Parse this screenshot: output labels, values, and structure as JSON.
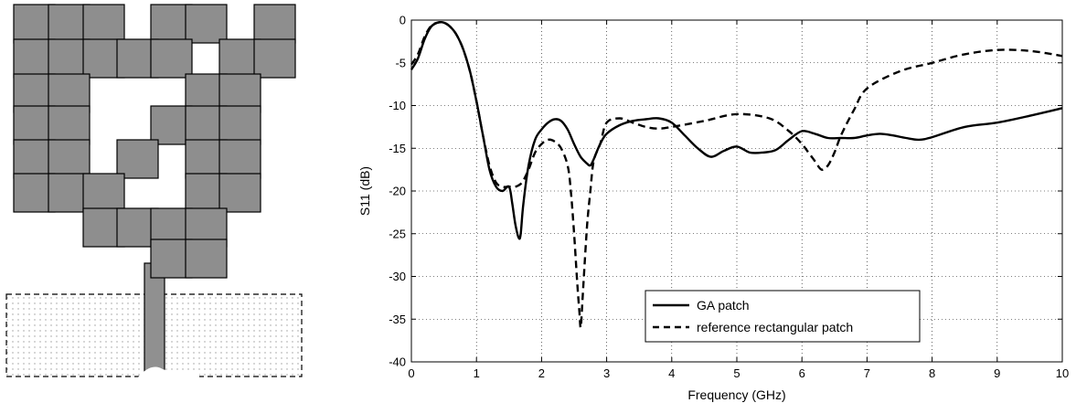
{
  "chart_data": {
    "type": "line",
    "title": "",
    "xlabel": "Frequency (GHz)",
    "ylabel": "S11 (dB)",
    "xlim": [
      0,
      10
    ],
    "ylim": [
      -40,
      0
    ],
    "xticks": [
      0,
      1,
      2,
      3,
      4,
      5,
      6,
      7,
      8,
      9,
      10
    ],
    "yticks": [
      0,
      -5,
      -10,
      -15,
      -20,
      -25,
      -30,
      -35,
      -40
    ],
    "grid": true,
    "legend_position": "bottom-right",
    "series": [
      {
        "name": "GA patch",
        "line_style": "solid",
        "color": "#000000",
        "x": [
          0,
          0.1,
          0.2,
          0.3,
          0.4,
          0.5,
          0.6,
          0.7,
          0.8,
          0.9,
          1.0,
          1.1,
          1.2,
          1.3,
          1.4,
          1.5,
          1.55,
          1.6,
          1.65,
          1.68,
          1.72,
          1.8,
          1.9,
          2.0,
          2.1,
          2.2,
          2.3,
          2.4,
          2.5,
          2.6,
          2.7,
          2.75,
          2.8,
          2.9,
          3.0,
          3.2,
          3.4,
          3.6,
          3.8,
          4.0,
          4.2,
          4.4,
          4.6,
          4.8,
          5.0,
          5.2,
          5.4,
          5.6,
          5.8,
          6.0,
          6.2,
          6.4,
          6.6,
          6.8,
          7.0,
          7.2,
          7.4,
          7.6,
          7.8,
          8.0,
          8.5,
          9.0,
          9.5,
          10.0
        ],
        "y": [
          -5.8,
          -4.5,
          -2.3,
          -0.8,
          -0.3,
          -0.3,
          -0.8,
          -1.8,
          -3.5,
          -6.0,
          -9.5,
          -13.5,
          -17.5,
          -19.5,
          -20.0,
          -19.5,
          -21.5,
          -24.0,
          -25.5,
          -25.0,
          -21.5,
          -17.0,
          -14.0,
          -12.8,
          -12.0,
          -11.6,
          -11.8,
          -12.8,
          -14.5,
          -16.0,
          -16.8,
          -17.0,
          -16.3,
          -14.5,
          -13.3,
          -12.3,
          -11.8,
          -11.6,
          -11.5,
          -12.0,
          -13.5,
          -15.0,
          -16.0,
          -15.3,
          -14.8,
          -15.5,
          -15.5,
          -15.2,
          -14.0,
          -13.0,
          -13.3,
          -13.8,
          -13.8,
          -13.8,
          -13.5,
          -13.3,
          -13.5,
          -13.8,
          -14.0,
          -13.7,
          -12.5,
          -12.0,
          -11.2,
          -10.3
        ]
      },
      {
        "name": "reference rectangular patch",
        "line_style": "dashed",
        "color": "#000000",
        "x": [
          0,
          0.1,
          0.2,
          0.3,
          0.4,
          0.5,
          0.6,
          0.7,
          0.8,
          0.9,
          1.0,
          1.1,
          1.2,
          1.3,
          1.4,
          1.5,
          1.6,
          1.7,
          1.8,
          1.9,
          2.0,
          2.1,
          2.2,
          2.3,
          2.4,
          2.45,
          2.5,
          2.55,
          2.58,
          2.6,
          2.62,
          2.65,
          2.7,
          2.75,
          2.8,
          2.9,
          3.0,
          3.2,
          3.4,
          3.6,
          3.8,
          4.0,
          4.5,
          5.0,
          5.5,
          5.8,
          6.0,
          6.1,
          6.2,
          6.3,
          6.4,
          6.5,
          6.6,
          6.8,
          7.0,
          7.5,
          8.0,
          8.5,
          9.0,
          9.5,
          10.0
        ],
        "y": [
          -5.2,
          -4.0,
          -2.0,
          -0.7,
          -0.3,
          -0.3,
          -0.8,
          -1.8,
          -3.5,
          -6.0,
          -9.5,
          -13.5,
          -17.0,
          -19.0,
          -19.5,
          -19.5,
          -19.5,
          -19.0,
          -17.5,
          -15.5,
          -14.5,
          -14.0,
          -14.2,
          -15.0,
          -17.0,
          -20.0,
          -25.0,
          -31.0,
          -34.0,
          -36.0,
          -34.0,
          -30.0,
          -24.0,
          -20.0,
          -16.5,
          -14.5,
          -12.0,
          -11.5,
          -12.0,
          -12.5,
          -12.7,
          -12.5,
          -11.8,
          -11.0,
          -11.5,
          -13.0,
          -14.5,
          -15.5,
          -16.5,
          -17.5,
          -17.0,
          -15.5,
          -13.5,
          -10.5,
          -8.0,
          -6.0,
          -5.0,
          -4.0,
          -3.5,
          -3.6,
          -4.2
        ]
      }
    ]
  }
}
